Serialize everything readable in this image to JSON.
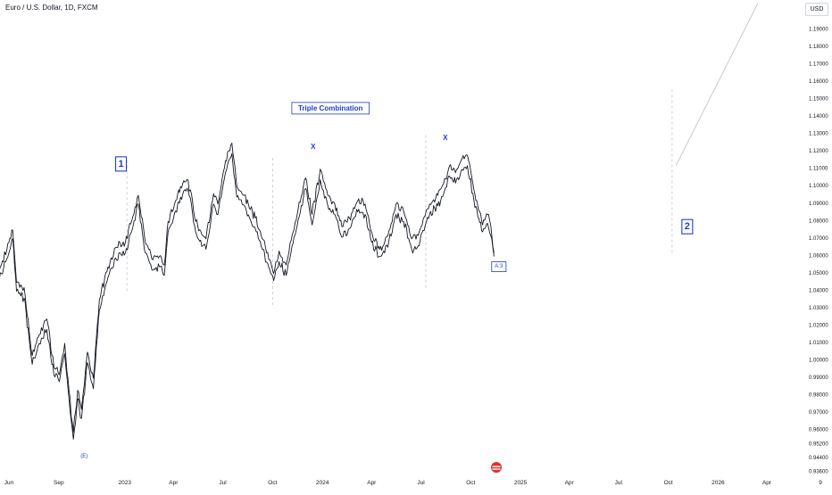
{
  "header": {
    "title": "Euro / U.S. Dollar, 1D, FXCM",
    "currency": "USD"
  },
  "chart_data": {
    "type": "line",
    "title": "Euro / U.S. Dollar, 1D, FXCM",
    "ylim": [
      0.935,
      1.2
    ],
    "y_ticks": [
      1.19,
      1.18,
      1.17,
      1.16,
      1.15,
      1.14,
      1.13,
      1.12,
      1.11,
      1.1,
      1.09,
      1.08,
      1.07,
      1.06,
      1.05,
      1.04,
      1.03,
      1.02,
      1.01,
      1.0,
      0.99,
      0.98,
      0.97,
      0.96,
      0.952,
      0.944,
      0.936
    ],
    "y_tick_labels": [
      "1.19000",
      "1.18000",
      "1.17000",
      "1.16000",
      "1.15000",
      "1.14000",
      "1.13000",
      "1.12000",
      "1.11000",
      "1.10000",
      "1.09000",
      "1.08000",
      "1.07000",
      "1.06000",
      "1.05000",
      "1.04000",
      "1.03000",
      "1.02000",
      "1.01000",
      "1.00000",
      "0.99000",
      "0.98000",
      "0.97000",
      "0.96000",
      "0.95200",
      "0.94400",
      "0.93600"
    ],
    "x_labels": [
      "Jun",
      "Sep",
      "2023",
      "Apr",
      "Jul",
      "Oct",
      "2024",
      "Apr",
      "Jul",
      "Oct",
      "2025",
      "Apr",
      "Jul",
      "Oct",
      "2026",
      "Apr",
      "9"
    ],
    "x_label_dates": [
      "2022-06-01",
      "2022-09-01",
      "2023-01-01",
      "2023-04-01",
      "2023-07-01",
      "2023-10-01",
      "2024-01-01",
      "2024-04-01",
      "2024-07-01",
      "2024-10-01",
      "2025-01-01",
      "2025-04-01",
      "2025-07-01",
      "2025-10-01",
      "2026-01-01",
      "2026-04-01",
      "2026-07-09"
    ],
    "series": [
      {
        "kind": "price",
        "x": [
          "2022-05-04",
          "2022-05-18",
          "2022-06-01",
          "2022-06-08",
          "2022-06-15",
          "2022-06-29",
          "2022-07-14",
          "2022-07-27",
          "2022-08-10",
          "2022-08-23",
          "2022-09-02",
          "2022-09-12",
          "2022-09-20",
          "2022-09-28",
          "2022-10-06",
          "2022-10-13",
          "2022-10-24",
          "2022-11-04",
          "2022-11-15",
          "2022-12-01",
          "2022-12-15",
          "2023-01-02",
          "2023-01-16",
          "2023-01-26",
          "2023-02-08",
          "2023-02-22",
          "2023-03-06",
          "2023-03-15",
          "2023-03-22",
          "2023-04-05",
          "2023-04-14",
          "2023-04-26",
          "2023-05-04",
          "2023-05-12",
          "2023-05-25",
          "2023-05-31",
          "2023-06-14",
          "2023-06-22",
          "2023-07-06",
          "2023-07-18",
          "2023-07-27",
          "2023-08-10",
          "2023-08-21",
          "2023-08-30",
          "2023-09-12",
          "2023-09-26",
          "2023-10-03",
          "2023-10-13",
          "2023-10-26",
          "2023-11-06",
          "2023-11-21",
          "2023-12-01",
          "2023-12-13",
          "2023-12-28",
          "2024-01-11",
          "2024-01-24",
          "2024-02-06",
          "2024-02-20",
          "2024-03-08",
          "2024-03-20",
          "2024-04-01",
          "2024-04-16",
          "2024-04-25",
          "2024-05-09",
          "2024-05-16",
          "2024-05-30",
          "2024-06-14",
          "2024-06-26",
          "2024-07-05",
          "2024-07-17",
          "2024-08-01",
          "2024-08-12",
          "2024-08-23",
          "2024-09-03",
          "2024-09-13",
          "2024-09-25",
          "2024-10-07",
          "2024-10-14",
          "2024-10-23",
          "2024-11-01",
          "2024-11-07",
          "2024-11-13"
        ],
        "y": [
          1.045,
          1.055,
          1.068,
          1.075,
          1.045,
          1.042,
          1.003,
          1.015,
          1.024,
          0.997,
          0.992,
          1.01,
          0.983,
          0.959,
          0.983,
          0.972,
          1.005,
          0.99,
          1.035,
          1.054,
          1.065,
          1.068,
          1.083,
          1.095,
          1.068,
          1.058,
          1.06,
          1.055,
          1.08,
          1.092,
          1.1,
          1.104,
          1.096,
          1.08,
          1.072,
          1.07,
          1.096,
          1.09,
          1.115,
          1.125,
          1.1,
          1.095,
          1.087,
          1.082,
          1.07,
          1.058,
          1.05,
          1.063,
          1.055,
          1.072,
          1.091,
          1.105,
          1.084,
          1.11,
          1.095,
          1.09,
          1.077,
          1.082,
          1.093,
          1.09,
          1.074,
          1.064,
          1.068,
          1.08,
          1.09,
          1.086,
          1.07,
          1.072,
          1.081,
          1.09,
          1.095,
          1.102,
          1.112,
          1.108,
          1.115,
          1.118,
          1.098,
          1.089,
          1.078,
          1.084,
          1.078,
          1.062
        ]
      },
      {
        "kind": "price",
        "x": [
          "2022-05-04",
          "2022-05-18",
          "2022-06-01",
          "2022-06-08",
          "2022-06-15",
          "2022-06-29",
          "2022-07-14",
          "2022-07-27",
          "2022-08-10",
          "2022-08-23",
          "2022-09-02",
          "2022-09-12",
          "2022-09-20",
          "2022-09-28",
          "2022-10-06",
          "2022-10-13",
          "2022-10-24",
          "2022-11-04",
          "2022-11-15",
          "2022-12-01",
          "2022-12-15",
          "2023-01-02",
          "2023-01-16",
          "2023-01-26",
          "2023-02-08",
          "2023-02-22",
          "2023-03-06",
          "2023-03-15",
          "2023-03-22",
          "2023-04-05",
          "2023-04-14",
          "2023-04-26",
          "2023-05-04",
          "2023-05-12",
          "2023-05-25",
          "2023-05-31",
          "2023-06-14",
          "2023-06-22",
          "2023-07-06",
          "2023-07-18",
          "2023-07-27",
          "2023-08-10",
          "2023-08-21",
          "2023-08-30",
          "2023-09-12",
          "2023-09-26",
          "2023-10-03",
          "2023-10-13",
          "2023-10-26",
          "2023-11-06",
          "2023-11-21",
          "2023-12-01",
          "2023-12-13",
          "2023-12-28",
          "2024-01-11",
          "2024-01-24",
          "2024-02-06",
          "2024-02-20",
          "2024-03-08",
          "2024-03-20",
          "2024-04-01",
          "2024-04-16",
          "2024-04-25",
          "2024-05-09",
          "2024-05-16",
          "2024-05-30",
          "2024-06-14",
          "2024-06-26",
          "2024-07-05",
          "2024-07-17",
          "2024-08-01",
          "2024-08-12",
          "2024-08-23",
          "2024-09-03",
          "2024-09-13",
          "2024-09-25",
          "2024-10-07",
          "2024-10-14",
          "2024-10-23",
          "2024-11-01",
          "2024-11-07",
          "2024-11-13"
        ],
        "y": [
          1.038,
          1.05,
          1.062,
          1.07,
          1.04,
          1.036,
          0.998,
          1.01,
          1.018,
          0.992,
          0.988,
          1.004,
          0.978,
          0.955,
          0.978,
          0.967,
          0.999,
          0.984,
          1.029,
          1.048,
          1.059,
          1.062,
          1.077,
          1.09,
          1.062,
          1.052,
          1.054,
          1.049,
          1.074,
          1.086,
          1.094,
          1.099,
          1.09,
          1.074,
          1.066,
          1.064,
          1.09,
          1.084,
          1.108,
          1.119,
          1.094,
          1.089,
          1.081,
          1.076,
          1.064,
          1.052,
          1.046,
          1.057,
          1.049,
          1.066,
          1.085,
          1.099,
          1.078,
          1.104,
          1.089,
          1.084,
          1.071,
          1.076,
          1.087,
          1.084,
          1.068,
          1.06,
          1.062,
          1.074,
          1.084,
          1.08,
          1.064,
          1.066,
          1.075,
          1.084,
          1.089,
          1.096,
          1.106,
          1.102,
          1.109,
          1.112,
          1.092,
          1.083,
          1.074,
          1.079,
          1.072,
          1.06
        ]
      },
      {
        "kind": "projection",
        "x": [
          "2025-10-15",
          "2026-03-15"
        ],
        "y": [
          1.112,
          1.205
        ]
      }
    ],
    "vlines": [
      {
        "x": "2023-01-05",
        "y": [
          1.04,
          1.115
        ]
      },
      {
        "x": "2023-10-01",
        "y": [
          1.032,
          1.117
        ]
      },
      {
        "x": "2024-07-10",
        "y": [
          1.042,
          1.13
        ]
      },
      {
        "x": "2025-10-08",
        "y": [
          1.062,
          1.157
        ]
      }
    ],
    "annotations": [
      {
        "text": "Triple Combination",
        "x": "2024-01-16",
        "y": 1.145,
        "boxed": true,
        "size": "medium"
      },
      {
        "text": "1",
        "x": "2022-12-25",
        "y": 1.113,
        "boxed": true,
        "size": "large"
      },
      {
        "text": "X",
        "x": "2023-12-15",
        "y": 1.123,
        "boxed": false,
        "size": "medium"
      },
      {
        "text": "X",
        "x": "2024-08-15",
        "y": 1.128,
        "boxed": false,
        "size": "medium"
      },
      {
        "text": "2",
        "x": "2025-11-05",
        "y": 1.077,
        "boxed": true,
        "size": "large"
      },
      {
        "text": "A:3",
        "x": "2024-11-22",
        "y": 1.054,
        "boxed": true,
        "size": "small"
      },
      {
        "text": "(E)",
        "x": "2022-10-18",
        "y": 0.945,
        "boxed": false,
        "size": "small"
      }
    ],
    "grid": false,
    "legend": "none",
    "colors": {
      "price": "#131722",
      "annotation": "#1e3fc9",
      "guides": "#c2c4cc",
      "event_badge": "#e0312f"
    }
  }
}
